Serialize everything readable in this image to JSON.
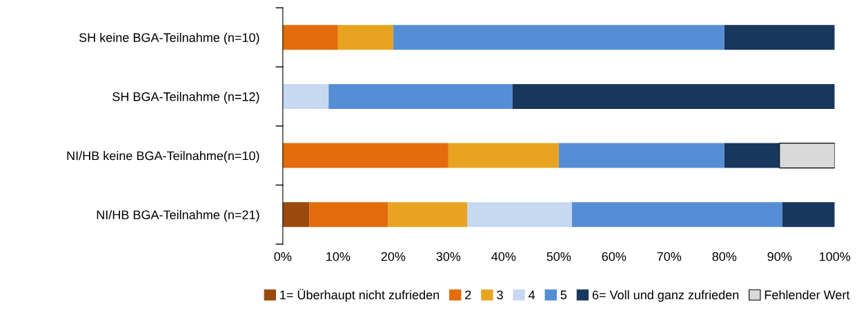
{
  "chart_data": {
    "type": "bar",
    "orientation": "horizontal",
    "stacked": true,
    "categories": [
      "SH keine BGA-Teilnahme (n=10)",
      "SH BGA-Teilnahme (n=12)",
      "NI/HB keine BGA-Teilnahme(n=10)",
      "NI/HB BGA-Teilnahme (n=21)"
    ],
    "series": [
      {
        "name": "1= Überhaupt nicht zufrieden",
        "color": "#994a0c",
        "values": [
          0,
          0,
          0,
          4.8
        ]
      },
      {
        "name": "2",
        "color": "#e46c0a",
        "values": [
          10,
          0,
          30,
          14.3
        ]
      },
      {
        "name": "3",
        "color": "#e8a420",
        "values": [
          10,
          0,
          20,
          14.3
        ]
      },
      {
        "name": "4",
        "color": "#c6d9f1",
        "values": [
          0,
          8.3,
          0,
          19.0
        ]
      },
      {
        "name": "5",
        "color": "#558ed5",
        "values": [
          60,
          33.3,
          30,
          38.1
        ]
      },
      {
        "name": "6= Voll und ganz zufrieden",
        "color": "#17375e",
        "values": [
          20,
          58.4,
          10,
          9.5
        ]
      },
      {
        "name": "Fehlender Wert",
        "color": "#d9d9d9",
        "values": [
          0,
          0,
          10,
          0
        ]
      }
    ],
    "xlim": [
      0,
      100
    ],
    "xticks": [
      {
        "value": 0,
        "label": "0%"
      },
      {
        "value": 10,
        "label": "10%"
      },
      {
        "value": 20,
        "label": "20%"
      },
      {
        "value": 30,
        "label": "30%"
      },
      {
        "value": 40,
        "label": "40%"
      },
      {
        "value": 50,
        "label": "50%"
      },
      {
        "value": 60,
        "label": "60%"
      },
      {
        "value": 70,
        "label": "70%"
      },
      {
        "value": 80,
        "label": "80%"
      },
      {
        "value": 90,
        "label": "90%"
      },
      {
        "value": 100,
        "label": "100%"
      }
    ],
    "grid": false,
    "legend": "bottom"
  }
}
